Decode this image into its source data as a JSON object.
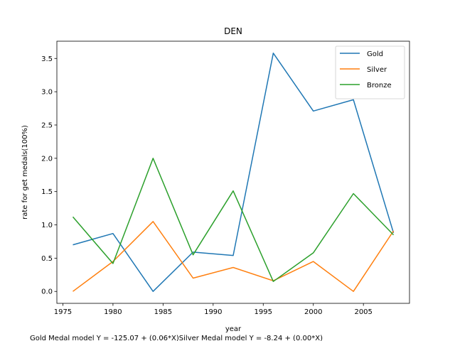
{
  "chart_data": {
    "type": "line",
    "title": "DEN",
    "xlabel": "year",
    "ylabel": "rate for get medals(100%)",
    "caption": "Gold Medal model Y = -125.07 + (0.06*X)Silver Medal model Y = -8.24 + (0.00*X)",
    "xlim": [
      1974.4,
      2009.6
    ],
    "ylim": [
      -0.179,
      3.759
    ],
    "xticks": [
      1975,
      1980,
      1985,
      1990,
      1995,
      2000,
      2005
    ],
    "xtick_labels": [
      "1975",
      "1980",
      "1985",
      "1990",
      "1995",
      "2000",
      "2005"
    ],
    "yticks": [
      0.0,
      0.5,
      1.0,
      1.5,
      2.0,
      2.5,
      3.0,
      3.5
    ],
    "ytick_labels": [
      "0.0",
      "0.5",
      "1.0",
      "1.5",
      "2.0",
      "2.5",
      "3.0",
      "3.5"
    ],
    "legend_position": "top-right",
    "x": [
      1976,
      1980,
      1984,
      1988,
      1992,
      1996,
      2000,
      2004,
      2008
    ],
    "series": [
      {
        "name": "Gold",
        "color": "#1f77b4",
        "values": [
          0.7,
          0.87,
          0.0,
          0.59,
          0.54,
          3.58,
          2.71,
          2.88,
          0.88
        ]
      },
      {
        "name": "Silver",
        "color": "#ff7f0e",
        "values": [
          0.0,
          0.45,
          1.05,
          0.2,
          0.36,
          0.16,
          0.45,
          0.0,
          0.91
        ]
      },
      {
        "name": "Bronze",
        "color": "#2ca02c",
        "values": [
          1.12,
          0.42,
          2.0,
          0.55,
          1.51,
          0.15,
          0.58,
          1.47,
          0.85
        ]
      }
    ]
  }
}
